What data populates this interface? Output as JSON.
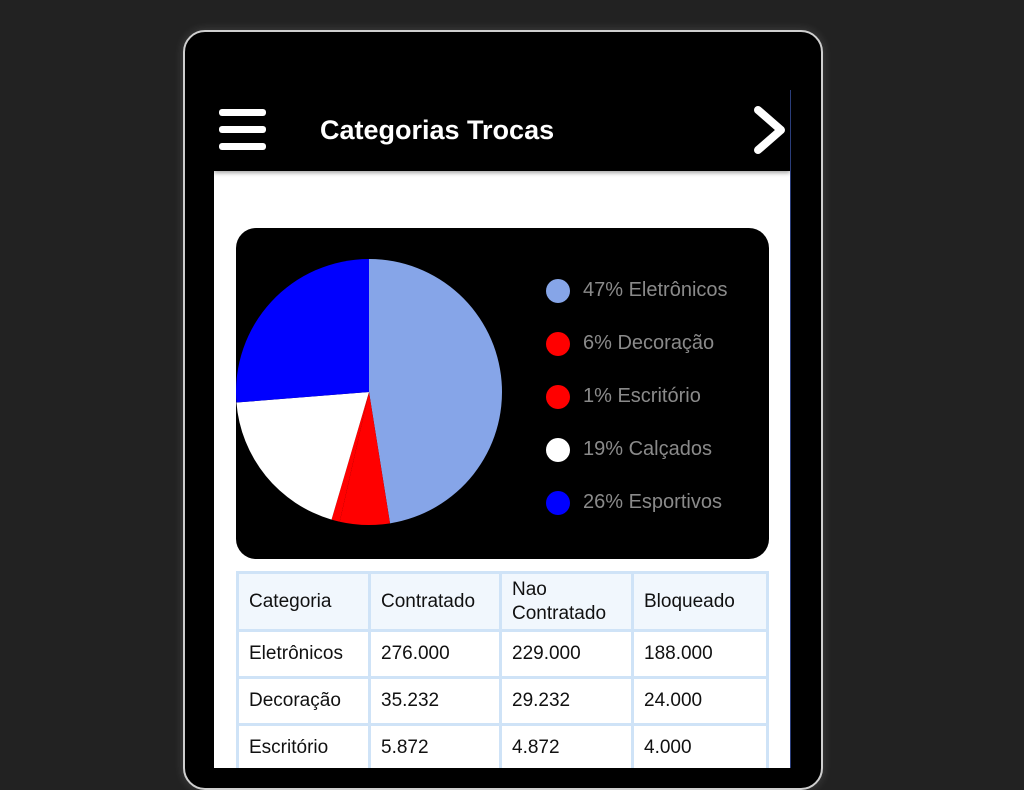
{
  "appbar": {
    "title": "Categorias Trocas",
    "menu_icon": "hamburger-menu-icon",
    "next_icon": "chevron-right-icon"
  },
  "chart_data": {
    "type": "pie",
    "title": "",
    "slices": [
      {
        "label": "Eletrônicos",
        "percent": 47,
        "color": "#86a5e8"
      },
      {
        "label": "Decoração",
        "percent": 6,
        "color": "#ff0000"
      },
      {
        "label": "Escritório",
        "percent": 1,
        "color": "#ff0000"
      },
      {
        "label": "Calçados",
        "percent": 19,
        "color": "#ffffff"
      },
      {
        "label": "Esportivos",
        "percent": 26,
        "color": "#0000ff"
      }
    ],
    "legend_position": "right"
  },
  "legend": [
    {
      "text": "47% Eletrônicos",
      "color": "#86a5e8"
    },
    {
      "text": "6% Decoração",
      "color": "#ff0000"
    },
    {
      "text": "1% Escritório",
      "color": "#ff0000"
    },
    {
      "text": "19% Calçados",
      "color": "#ffffff"
    },
    {
      "text": "26% Esportivos",
      "color": "#0000ff"
    }
  ],
  "table": {
    "headers": [
      "Categoria",
      "Contratado",
      "Nao Contratado",
      "Bloqueado"
    ],
    "rows": [
      [
        "Eletrônicos",
        "276.000",
        "229.000",
        "188.000"
      ],
      [
        "Decoração",
        "35.232",
        "29.232",
        "24.000"
      ],
      [
        "Escritório",
        "5.872",
        "4.872",
        "4.000"
      ]
    ]
  }
}
